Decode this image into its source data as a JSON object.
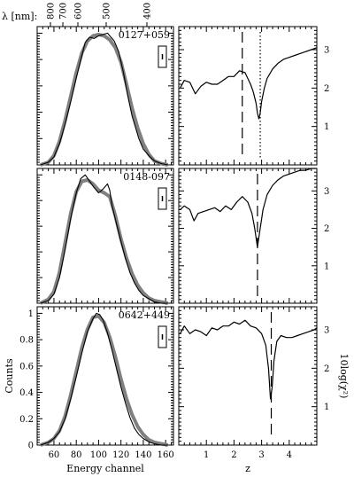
{
  "figure": {
    "top_axis_label": "λ [nm]:",
    "top_axis_ticks": [
      "800",
      "700",
      "600",
      "500",
      "400"
    ],
    "left_xlabel": "Energy channel",
    "left_ylabel": "Counts",
    "right_xlabel": "z",
    "right_ylabel": "10log(χ²)"
  },
  "chart_data": [
    {
      "type": "line",
      "panel": "spectrum",
      "label": "0127+059",
      "x_range": [
        45,
        167
      ],
      "y_range": [
        0,
        1.05
      ],
      "series": [
        {
          "name": "",
          "color": "#000000",
          "x": [
            48,
            55,
            60,
            65,
            70,
            75,
            80,
            85,
            88,
            92,
            96,
            100,
            104,
            108,
            110,
            114,
            118,
            122,
            126,
            130,
            136,
            140,
            146,
            150,
            156,
            162
          ],
          "y": [
            0.0,
            0.02,
            0.06,
            0.16,
            0.31,
            0.48,
            0.66,
            0.83,
            0.93,
            0.97,
            0.96,
            0.98,
            0.99,
            1.0,
            0.98,
            0.94,
            0.86,
            0.71,
            0.53,
            0.37,
            0.2,
            0.12,
            0.06,
            0.03,
            0.01,
            0.0
          ]
        },
        {
          "name": "",
          "color": "#808080",
          "x": [
            48,
            55,
            60,
            65,
            70,
            75,
            80,
            85,
            90,
            95,
            100,
            105,
            110,
            115,
            120,
            125,
            130,
            135,
            140,
            145,
            150,
            156,
            162
          ],
          "y": [
            0.0,
            0.02,
            0.07,
            0.18,
            0.34,
            0.52,
            0.7,
            0.85,
            0.94,
            0.98,
            0.99,
            0.98,
            0.95,
            0.89,
            0.78,
            0.61,
            0.43,
            0.28,
            0.16,
            0.08,
            0.03,
            0.01,
            0.0
          ]
        }
      ]
    },
    {
      "type": "line",
      "panel": "chi2",
      "label": "",
      "x_range": [
        0,
        5
      ],
      "y_range": [
        0,
        3.6
      ],
      "series": [
        {
          "name": "",
          "color": "#000000",
          "x": [
            0.05,
            0.2,
            0.4,
            0.6,
            0.8,
            1.0,
            1.2,
            1.4,
            1.6,
            1.8,
            2.0,
            2.2,
            2.4,
            2.6,
            2.7,
            2.8,
            2.85,
            2.9,
            2.95,
            3.0,
            3.1,
            3.2,
            3.4,
            3.6,
            3.8,
            4.0,
            4.2,
            4.4,
            4.6,
            4.8,
            5.0
          ],
          "y": [
            2.0,
            2.2,
            2.15,
            1.85,
            2.05,
            2.15,
            2.1,
            2.1,
            2.2,
            2.3,
            2.3,
            2.45,
            2.4,
            2.1,
            1.9,
            1.6,
            1.35,
            1.2,
            1.35,
            1.65,
            2.0,
            2.25,
            2.5,
            2.65,
            2.75,
            2.8,
            2.85,
            2.9,
            2.95,
            3.0,
            3.05
          ]
        }
      ],
      "markers": [
        {
          "z": 2.3,
          "style": "dashed"
        },
        {
          "z": 2.95,
          "style": "dotted"
        }
      ]
    },
    {
      "type": "line",
      "panel": "spectrum",
      "label": "0148-097",
      "x_range": [
        45,
        167
      ],
      "y_range": [
        0,
        1.05
      ],
      "series": [
        {
          "name": "",
          "color": "#000000",
          "x": [
            48,
            55,
            60,
            65,
            70,
            75,
            80,
            84,
            88,
            92,
            96,
            100,
            104,
            108,
            110,
            112,
            116,
            120,
            124,
            128,
            132,
            136,
            140,
            146,
            150,
            156,
            162
          ],
          "y": [
            0.0,
            0.02,
            0.07,
            0.2,
            0.42,
            0.66,
            0.86,
            0.97,
            1.0,
            0.95,
            0.9,
            0.86,
            0.89,
            0.93,
            0.88,
            0.76,
            0.62,
            0.48,
            0.35,
            0.24,
            0.16,
            0.1,
            0.06,
            0.03,
            0.01,
            0.0,
            0.0
          ]
        },
        {
          "name": "",
          "color": "#808080",
          "x": [
            48,
            55,
            60,
            65,
            70,
            75,
            80,
            85,
            90,
            95,
            100,
            105,
            110,
            115,
            120,
            125,
            130,
            135,
            140,
            145,
            150,
            156,
            162
          ],
          "y": [
            0.0,
            0.03,
            0.09,
            0.24,
            0.47,
            0.7,
            0.87,
            0.95,
            0.96,
            0.93,
            0.88,
            0.86,
            0.83,
            0.68,
            0.5,
            0.35,
            0.23,
            0.14,
            0.08,
            0.04,
            0.02,
            0.01,
            0.0
          ]
        }
      ]
    },
    {
      "type": "line",
      "panel": "chi2",
      "label": "",
      "x_range": [
        0,
        5
      ],
      "y_range": [
        0,
        3.6
      ],
      "series": [
        {
          "name": "",
          "color": "#000000",
          "x": [
            0.05,
            0.2,
            0.4,
            0.55,
            0.7,
            0.9,
            1.1,
            1.3,
            1.5,
            1.7,
            1.9,
            2.1,
            2.3,
            2.5,
            2.65,
            2.75,
            2.85,
            2.95,
            3.05,
            3.2,
            3.4,
            3.6,
            3.8,
            4.0,
            4.2,
            4.4,
            4.6,
            4.8,
            5.0
          ],
          "y": [
            2.5,
            2.6,
            2.5,
            2.2,
            2.4,
            2.45,
            2.5,
            2.55,
            2.45,
            2.6,
            2.5,
            2.7,
            2.85,
            2.7,
            2.4,
            2.0,
            1.5,
            2.0,
            2.5,
            2.9,
            3.15,
            3.3,
            3.4,
            3.45,
            3.5,
            3.55,
            3.55,
            3.6,
            3.6
          ]
        }
      ],
      "markers": [
        {
          "z": 2.85,
          "style": "dashed"
        }
      ]
    },
    {
      "type": "line",
      "panel": "spectrum",
      "label": "0642+449",
      "x_range": [
        45,
        167
      ],
      "y_range": [
        0,
        1.05
      ],
      "series": [
        {
          "name": "",
          "color": "#000000",
          "x": [
            48,
            55,
            60,
            65,
            70,
            75,
            80,
            85,
            90,
            95,
            98,
            101,
            104,
            108,
            112,
            116,
            120,
            124,
            128,
            132,
            136,
            140,
            146,
            150,
            156,
            162
          ],
          "y": [
            0.0,
            0.02,
            0.05,
            0.1,
            0.2,
            0.35,
            0.52,
            0.7,
            0.86,
            0.96,
            1.0,
            0.99,
            0.95,
            0.85,
            0.72,
            0.58,
            0.44,
            0.32,
            0.21,
            0.13,
            0.08,
            0.05,
            0.02,
            0.01,
            0.0,
            0.0
          ]
        },
        {
          "name": "",
          "color": "#808080",
          "x": [
            48,
            55,
            60,
            65,
            70,
            75,
            80,
            85,
            90,
            95,
            100,
            105,
            110,
            115,
            120,
            125,
            130,
            135,
            140,
            145,
            150,
            156,
            162
          ],
          "y": [
            0.0,
            0.02,
            0.05,
            0.11,
            0.22,
            0.38,
            0.56,
            0.74,
            0.88,
            0.97,
            0.98,
            0.93,
            0.82,
            0.67,
            0.5,
            0.35,
            0.23,
            0.14,
            0.08,
            0.04,
            0.02,
            0.01,
            0.0
          ]
        }
      ]
    },
    {
      "type": "line",
      "panel": "chi2",
      "label": "",
      "x_range": [
        0,
        5
      ],
      "y_range": [
        0,
        3.6
      ],
      "series": [
        {
          "name": "",
          "color": "#000000",
          "x": [
            0.05,
            0.2,
            0.4,
            0.6,
            0.8,
            1.0,
            1.2,
            1.4,
            1.6,
            1.8,
            2.0,
            2.2,
            2.4,
            2.6,
            2.8,
            3.0,
            3.15,
            3.25,
            3.32,
            3.38,
            3.45,
            3.55,
            3.7,
            3.9,
            4.1,
            4.3,
            4.5,
            4.7,
            4.9,
            5.0
          ],
          "y": [
            2.9,
            3.1,
            2.9,
            3.0,
            2.95,
            2.85,
            3.05,
            3.0,
            3.1,
            3.1,
            3.2,
            3.15,
            3.25,
            3.1,
            3.05,
            2.9,
            2.6,
            2.0,
            1.2,
            1.5,
            2.2,
            2.7,
            2.85,
            2.8,
            2.8,
            2.85,
            2.9,
            2.95,
            3.0,
            3.05
          ]
        }
      ],
      "markers": [
        {
          "z": 3.35,
          "style": "dashed"
        }
      ]
    }
  ],
  "axes": {
    "spectrum_x_ticks": [
      60,
      80,
      100,
      120,
      140,
      160
    ],
    "spectrum_y_ticks": [
      "0",
      "0.2",
      "0.4",
      "0.6",
      "0.8",
      "1"
    ],
    "chi2_x_ticks": [
      "1",
      "2",
      "3",
      "4"
    ],
    "chi2_y_ticks": [
      "1",
      "2",
      "3"
    ]
  }
}
